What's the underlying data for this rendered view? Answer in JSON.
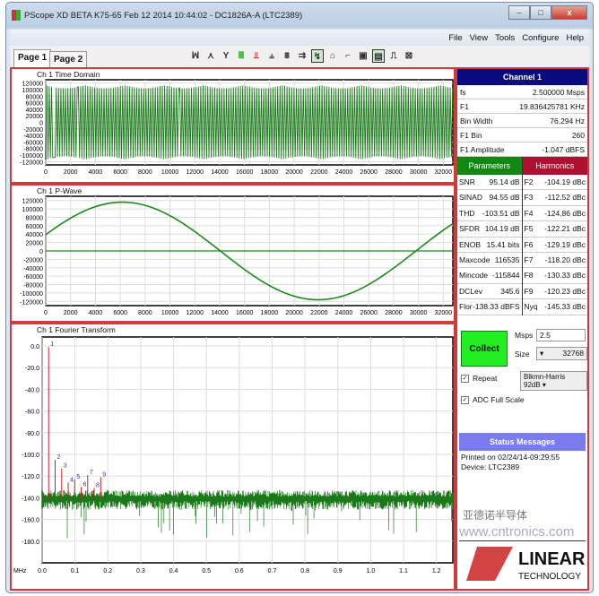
{
  "window": {
    "title": "PScope XD BETA K75-65 Feb 12 2014 10:44:02 - DC1826A-A (LTC2389)",
    "min": "–",
    "max": "□",
    "close": "x"
  },
  "menu": [
    "File",
    "View",
    "Tools",
    "Configure",
    "Help"
  ],
  "tabs": [
    "Page 1",
    "Page 2"
  ],
  "toolbar": [
    "ꟽ",
    "⋏",
    "Y",
    "Ⅲ",
    "⫫",
    "⫨",
    "⩩",
    "⇉",
    "↯",
    "⌂",
    "⌐",
    "▣",
    "▤",
    "⎍",
    "⊠"
  ],
  "time_domain": {
    "title": "Ch 1 Time Domain",
    "yticks": [
      "120000",
      "100000",
      "80000",
      "60000",
      "40000",
      "20000",
      "0",
      "-20000",
      "-40000",
      "-60000",
      "-80000",
      "-100000",
      "-120000"
    ],
    "xticks": [
      "0",
      "2000",
      "4000",
      "6000",
      "8000",
      "10000",
      "12000",
      "14000",
      "16000",
      "18000",
      "20000",
      "22000",
      "24000",
      "26000",
      "28000",
      "30000",
      "32000"
    ]
  },
  "pwave": {
    "title": "Ch 1 P-Wave",
    "yticks": [
      "120000",
      "100000",
      "80000",
      "60000",
      "40000",
      "20000",
      "0",
      "-20000",
      "-40000",
      "-60000",
      "-80000",
      "-100000",
      "-120000"
    ],
    "xticks": [
      "0",
      "2000",
      "4000",
      "6000",
      "8000",
      "10000",
      "12000",
      "14000",
      "16000",
      "18000",
      "20000",
      "22000",
      "24000",
      "26000",
      "28000",
      "30000",
      "32000"
    ]
  },
  "fft": {
    "title": "Ch 1 Fourier Transform",
    "yticks": [
      "0.0",
      "-20.0",
      "-40.0",
      "-60.0",
      "-80.0",
      "-100.0",
      "-120.0",
      "-140.0",
      "-160.0",
      "-180.0"
    ],
    "xunit": "MHz",
    "xticks": [
      "0.0",
      "0.1",
      "0.2",
      "0.3",
      "0.4",
      "0.5",
      "0.6",
      "0.7",
      "0.8",
      "0.9",
      "1.0",
      "1.1",
      "1.2"
    ],
    "harmonics": [
      "1",
      "2",
      "3",
      "4",
      "5",
      "6",
      "7",
      "8",
      "9"
    ]
  },
  "channel": {
    "title": "Channel 1",
    "rows": [
      [
        "fs",
        "2.500000 Msps"
      ],
      [
        "F1",
        "19.836425781 KHz"
      ],
      [
        "Bin Width",
        "76.294 Hz"
      ],
      [
        "F1 Bin",
        "260"
      ],
      [
        "F1 Amplitude",
        "-1.047 dBFS"
      ]
    ]
  },
  "parameters": {
    "title": "Parameters",
    "rows": [
      [
        "SNR",
        "95.14 dB"
      ],
      [
        "SINAD",
        "94.55 dB"
      ],
      [
        "THD",
        "-103.51 dB"
      ],
      [
        "SFDR",
        "104.19 dB"
      ],
      [
        "ENOB",
        "15.41 bits"
      ],
      [
        "Maxcode",
        "116535"
      ],
      [
        "Mincode",
        "-115844"
      ],
      [
        "DCLev",
        "345.6"
      ],
      [
        "Flor",
        "-138.33 dBFS"
      ]
    ]
  },
  "harmonics": {
    "title": "Harmonics",
    "rows": [
      [
        "F2",
        "-104.19 dBc"
      ],
      [
        "F3",
        "-112.52 dBc"
      ],
      [
        "F4",
        "-124.86 dBc"
      ],
      [
        "F5",
        "-122.21 dBc"
      ],
      [
        "F6",
        "-129.19 dBc"
      ],
      [
        "F7",
        "-118.20 dBc"
      ],
      [
        "F8",
        "-130.33 dBc"
      ],
      [
        "F9",
        "-120.23 dBc"
      ],
      [
        "Nyq",
        "-145.33 dBc"
      ]
    ]
  },
  "controls": {
    "collect": "Collect",
    "msps_label": "Msps",
    "msps_value": "2.5",
    "size_label": "Size",
    "size_value": "32768",
    "window_value": "Blkmn-Harris 92dB",
    "repeat_label": "Repeat",
    "adc_label": "ADC Full Scale",
    "repeat_checked": true,
    "adc_checked": true
  },
  "status": {
    "title": "Status Messages",
    "lines": [
      "Printed on 02/24/14-09:29:55",
      "Device: LTC2389"
    ]
  },
  "logo": {
    "text": "LINEAR TECHNOLOGY"
  },
  "watermark": {
    "text1": "亚德诺半导体",
    "text2": "www.cntronics.com"
  },
  "colors": {
    "trace": "#1a7a1a",
    "fundamental": "#d02020",
    "harmonic_label": "#3030c0",
    "panel_border": "#d23a3a",
    "channel_header": "#0a0a80",
    "params_header": "#118811",
    "harm_header": "#b01030",
    "status_header": "#7b7bf0",
    "collect": "#22ee22"
  }
}
